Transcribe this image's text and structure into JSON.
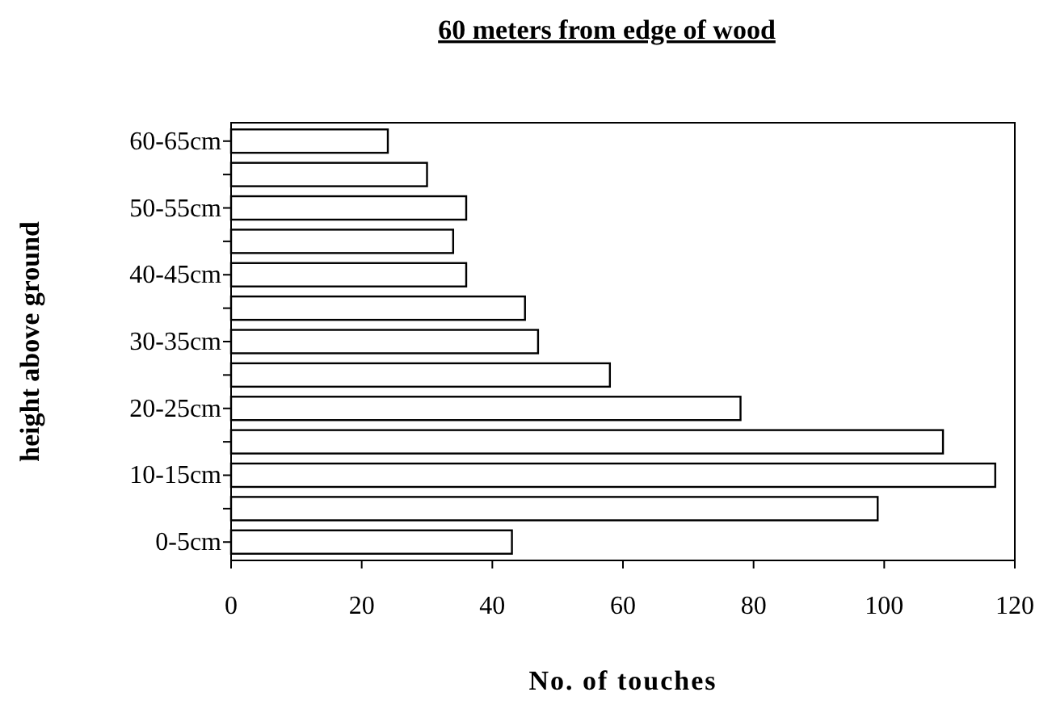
{
  "chart_data": {
    "type": "bar",
    "orientation": "horizontal",
    "title": "60 meters from edge of wood",
    "xlabel": "No. of touches",
    "ylabel": "height above ground",
    "categories": [
      "60-65cm",
      null,
      "50-55cm",
      null,
      "40-45cm",
      null,
      "30-35cm",
      null,
      "20-25cm",
      null,
      "10-15cm",
      null,
      "0-5cm"
    ],
    "values": [
      24,
      30,
      36,
      34,
      36,
      45,
      47,
      58,
      78,
      109,
      117,
      99,
      43
    ],
    "color": "#ffffff",
    "xlim": [
      0,
      120
    ],
    "xticks": [
      0,
      20,
      40,
      60,
      80,
      100,
      120
    ],
    "grid": false
  }
}
